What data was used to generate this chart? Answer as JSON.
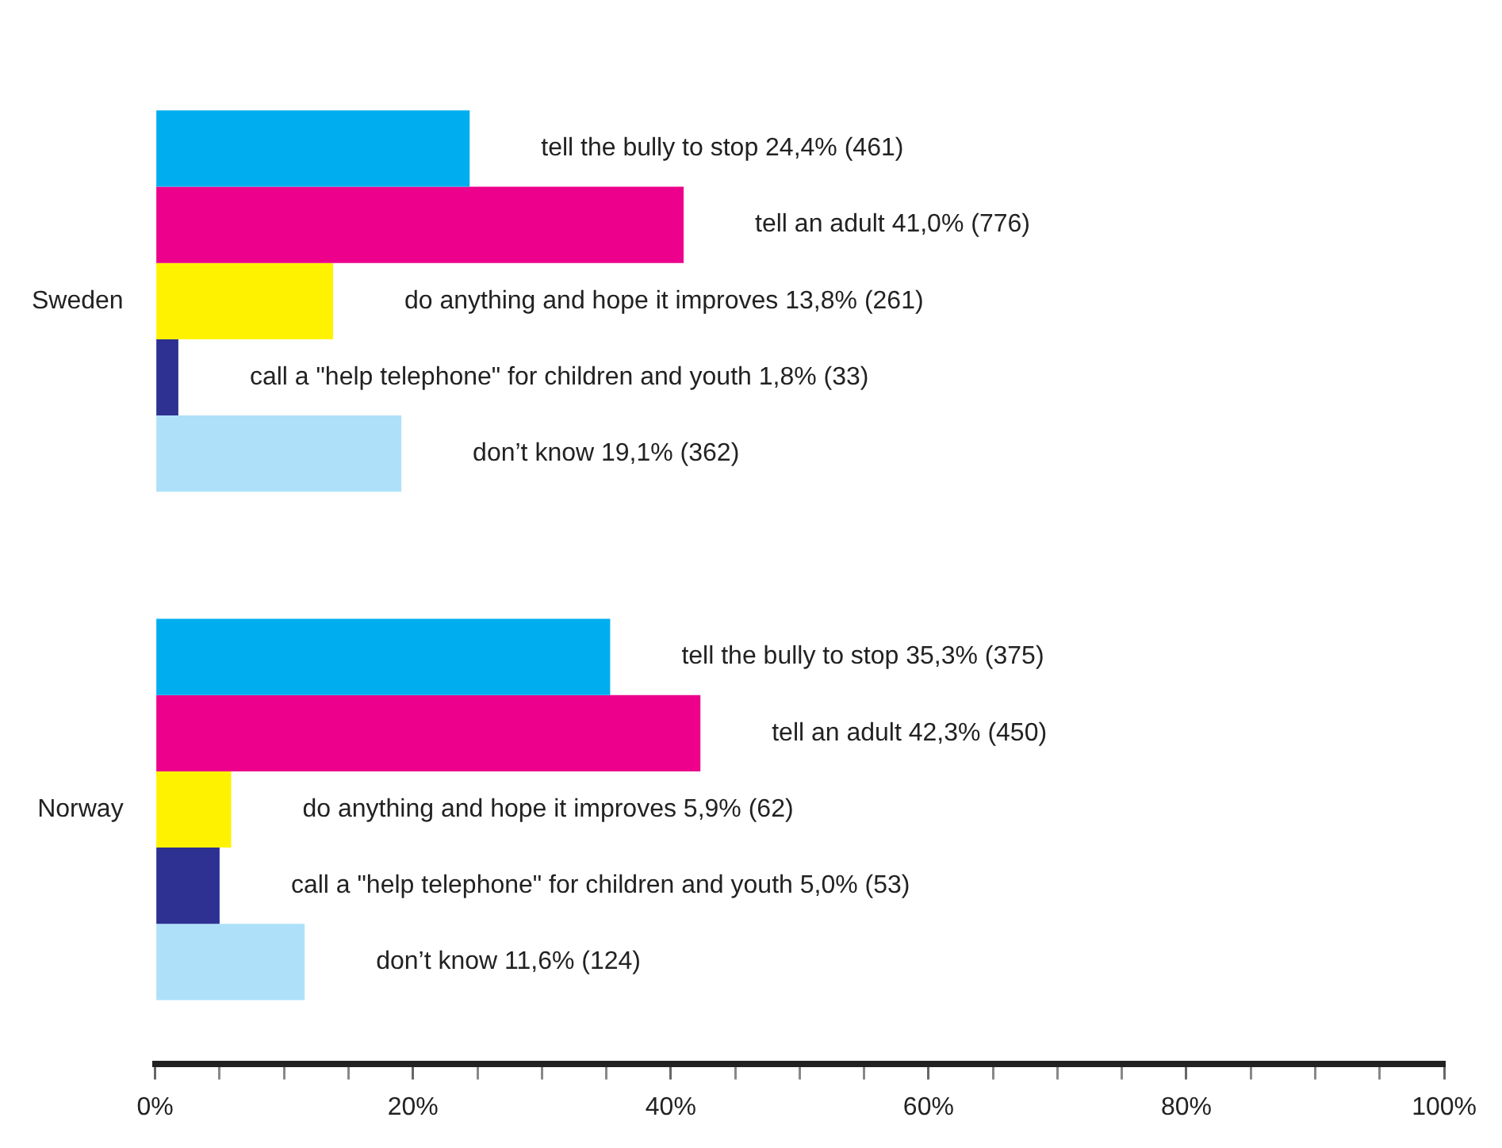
{
  "chart_data": {
    "type": "bar",
    "orientation": "horizontal",
    "categories": [
      "Sweden",
      "Norway"
    ],
    "series": [
      {
        "name": "tell the bully to stop",
        "color": "#00aeef",
        "values": [
          24.4,
          35.3
        ],
        "value_labels": [
          "24,4% (461)",
          "35,3% (375)"
        ]
      },
      {
        "name": "tell an adult",
        "color": "#ec008c",
        "values": [
          41.0,
          42.3
        ],
        "value_labels": [
          "41,0% (776)",
          "42,3% (450)"
        ]
      },
      {
        "name": "do anything and hope it improves",
        "color": "#fff200",
        "values": [
          13.8,
          5.9
        ],
        "value_labels": [
          "13,8% (261)",
          "5,9% (62)"
        ]
      },
      {
        "name": "call a \"help telephone\" for children and youth",
        "color": "#2e3192",
        "values": [
          1.8,
          5.0
        ],
        "value_labels": [
          "1,8% (33)",
          "5,0% (53)"
        ]
      },
      {
        "name": "don’t know",
        "color": "#aee1f9",
        "values": [
          19.1,
          11.6
        ],
        "value_labels": [
          "19,1% (362)",
          "11,6% (124)"
        ]
      }
    ],
    "xlim": [
      0,
      100
    ],
    "xticks": [
      {
        "value": 0,
        "label": "0%"
      },
      {
        "value": 5,
        "label": null
      },
      {
        "value": 10,
        "label": null
      },
      {
        "value": 15,
        "label": null
      },
      {
        "value": 20,
        "label": "20%"
      },
      {
        "value": 25,
        "label": null
      },
      {
        "value": 30,
        "label": null
      },
      {
        "value": 35,
        "label": null
      },
      {
        "value": 40,
        "label": "40%"
      },
      {
        "value": 45,
        "label": null
      },
      {
        "value": 50,
        "label": null
      },
      {
        "value": 55,
        "label": null
      },
      {
        "value": 60,
        "label": "60%"
      },
      {
        "value": 65,
        "label": null
      },
      {
        "value": 70,
        "label": null
      },
      {
        "value": 75,
        "label": null
      },
      {
        "value": 80,
        "label": "80%"
      },
      {
        "value": 85,
        "label": null
      },
      {
        "value": 90,
        "label": null
      },
      {
        "value": 95,
        "label": null
      },
      {
        "value": 100,
        "label": "100%"
      }
    ],
    "grid": false,
    "legend": false
  }
}
